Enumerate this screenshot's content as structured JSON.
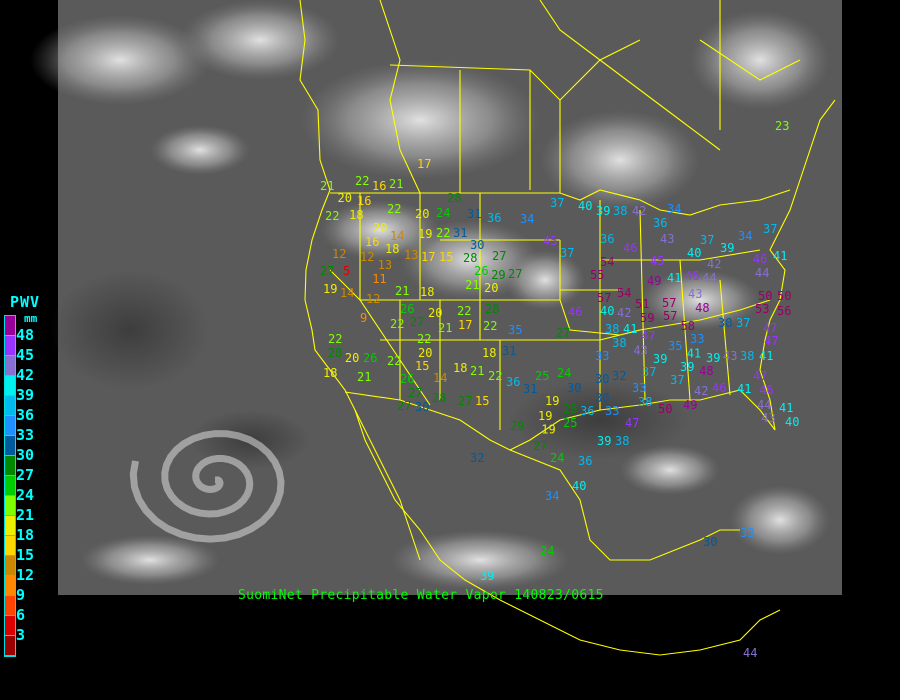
{
  "caption": "SuomiNet Precipitable Water Vapor 140823/0615",
  "legend": {
    "title": "PWV",
    "unit": "mm",
    "labels": [
      "48",
      "45",
      "42",
      "39",
      "36",
      "33",
      "30",
      "27",
      "24",
      "21",
      "18",
      "15",
      "12",
      "9",
      "6",
      "3"
    ],
    "colors": [
      "#990099",
      "#9933ff",
      "#8870d0",
      "#00f0f0",
      "#00bbee",
      "#1e90ff",
      "#005a9c",
      "#008800",
      "#00cc00",
      "#80ff00",
      "#eeee00",
      "#ffd700",
      "#cc8800",
      "#ff8800",
      "#ff4400",
      "#dd0000",
      "#990000"
    ]
  },
  "colors": {
    "borders": "#ffff00",
    "caption": "#00ff00",
    "legend_text": "#00ffff"
  },
  "stations": [
    16,
    28,
    22,
    20,
    24,
    31,
    36,
    34,
    22,
    18,
    20,
    16,
    14,
    19,
    22,
    31,
    30,
    12,
    18,
    13,
    13,
    17,
    15,
    28,
    27,
    12,
    5,
    11,
    27,
    26,
    19,
    14,
    21,
    18,
    21,
    20,
    29,
    12,
    9,
    26,
    20,
    22,
    28,
    22,
    27,
    21,
    17,
    22,
    35,
    22,
    20,
    15,
    18,
    31,
    26,
    22,
    20,
    18,
    21,
    22,
    14,
    36,
    31,
    26,
    27,
    28,
    27,
    15,
    30,
    27,
    22,
    28,
    21,
    18,
    37,
    40,
    39,
    38,
    42,
    45,
    37,
    54,
    55,
    46,
    36,
    34,
    36,
    43,
    40,
    37,
    39,
    34,
    45,
    42,
    44,
    46,
    37,
    41,
    49,
    41,
    46,
    44,
    57,
    54,
    51,
    57,
    43,
    48,
    50,
    53,
    50,
    56,
    46,
    40,
    42,
    57,
    58,
    59,
    30,
    37,
    47,
    47,
    38,
    41,
    47,
    33,
    38,
    43,
    35,
    41,
    33,
    39,
    37,
    39,
    39,
    48,
    43,
    38,
    41,
    37,
    32,
    24,
    25,
    30,
    30,
    33,
    38,
    47,
    46,
    41,
    46,
    44,
    42,
    49,
    50,
    30,
    33,
    28,
    36,
    19,
    19,
    25,
    47,
    43,
    41,
    40,
    39,
    27,
    17,
    22,
    21,
    32,
    34,
    40,
    36,
    38,
    24,
    30,
    33,
    44,
    23,
    29,
    19,
    27,
    24,
    39,
    16,
    21,
    20,
    27
  ]
}
